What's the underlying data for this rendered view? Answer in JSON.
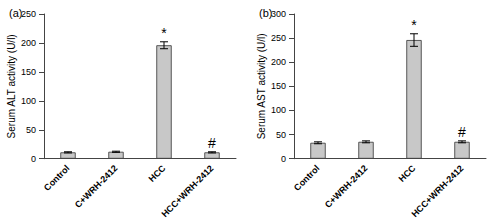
{
  "chart_data": [
    {
      "type": "bar",
      "title": "(a)",
      "y_label": "Serum ALT activity (U/l)",
      "categories": [
        "Control",
        "C+WRH-2412",
        "HCC",
        "HCC+WRH-2412"
      ],
      "values": [
        11,
        12,
        196,
        11
      ],
      "errors": [
        1,
        1,
        6,
        1
      ],
      "annotations": [
        {
          "category": "HCC",
          "text": "*"
        },
        {
          "category": "HCC+WRH-2412",
          "text": "#"
        }
      ],
      "color": "#c8c8c8",
      "ylim": [
        0,
        250
      ],
      "yticks": [
        0,
        50,
        100,
        150,
        200,
        250
      ],
      "grid": false
    },
    {
      "type": "bar",
      "title": "(b)",
      "y_label": "Serum AST activity (U/l)",
      "categories": [
        "Control",
        "C+WRH-2412",
        "HCC",
        "HCC+WRH-2412"
      ],
      "values": [
        33,
        35,
        246,
        35
      ],
      "errors": [
        2,
        2,
        13,
        2
      ],
      "annotations": [
        {
          "category": "HCC",
          "text": "*"
        },
        {
          "category": "HCC+WRH-2412",
          "text": "#"
        }
      ],
      "color": "#c8c8c8",
      "ylim": [
        0,
        300
      ],
      "yticks": [
        0,
        50,
        100,
        150,
        200,
        250,
        300
      ],
      "grid": false
    }
  ]
}
